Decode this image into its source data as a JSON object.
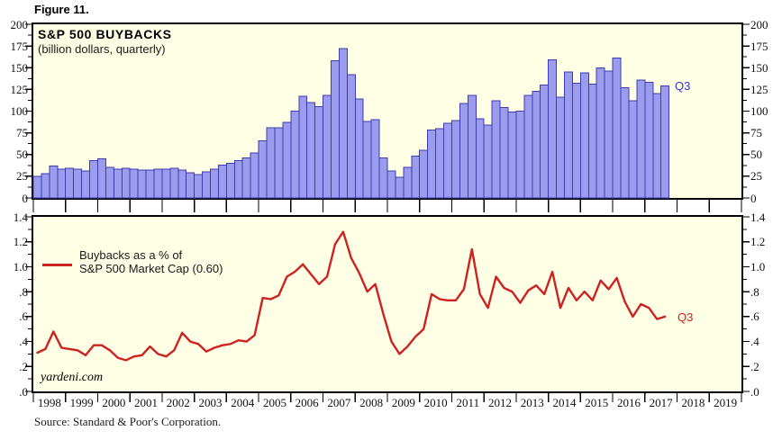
{
  "figure_label": "Figure 11.",
  "watermark": "yardeni.com",
  "source": "Source: Standard & Poor's Corporation.",
  "colors": {
    "plot_background": "#FFFFE5",
    "bar_fill": "#9C9CEF",
    "bar_border": "#3B3BAF",
    "line_red": "#CC2222",
    "annotation_blue": "#3333CC",
    "annotation_red": "#CC2222",
    "axis_black": "#000000"
  },
  "x_years": [
    "1998",
    "1999",
    "2000",
    "2001",
    "2002",
    "2003",
    "2004",
    "2005",
    "2006",
    "2007",
    "2008",
    "2009",
    "2010",
    "2011",
    "2012",
    "2013",
    "2014",
    "2015",
    "2016",
    "2017",
    "2018",
    "2019"
  ],
  "chart_data": [
    {
      "type": "bar",
      "panel": "top",
      "title": "S&P 500 BUYBACKS",
      "subtitle": "(billion dollars, quarterly)",
      "ylabel": "billion dollars",
      "ylim": [
        0,
        200
      ],
      "ytick_step": 25,
      "yticks": [
        [
          0,
          "0"
        ],
        [
          25,
          "25"
        ],
        [
          50,
          "50"
        ],
        [
          75,
          "75"
        ],
        [
          100,
          "100"
        ],
        [
          125,
          "125"
        ],
        [
          150,
          "150"
        ],
        [
          175,
          "175"
        ],
        [
          200,
          "200"
        ]
      ],
      "grid": false,
      "annotation": {
        "text": "Q3",
        "color": "#3333CC"
      },
      "categories": [
        "1998Q1",
        "1998Q2",
        "1998Q3",
        "1998Q4",
        "1999Q1",
        "1999Q2",
        "1999Q3",
        "1999Q4",
        "2000Q1",
        "2000Q2",
        "2000Q3",
        "2000Q4",
        "2001Q1",
        "2001Q2",
        "2001Q3",
        "2001Q4",
        "2002Q1",
        "2002Q2",
        "2002Q3",
        "2002Q4",
        "2003Q1",
        "2003Q2",
        "2003Q3",
        "2003Q4",
        "2004Q1",
        "2004Q2",
        "2004Q3",
        "2004Q4",
        "2005Q1",
        "2005Q2",
        "2005Q3",
        "2005Q4",
        "2006Q1",
        "2006Q2",
        "2006Q3",
        "2006Q4",
        "2007Q1",
        "2007Q2",
        "2007Q3",
        "2007Q4",
        "2008Q1",
        "2008Q2",
        "2008Q3",
        "2008Q4",
        "2009Q1",
        "2009Q2",
        "2009Q3",
        "2009Q4",
        "2010Q1",
        "2010Q2",
        "2010Q3",
        "2010Q4",
        "2011Q1",
        "2011Q2",
        "2011Q3",
        "2011Q4",
        "2012Q1",
        "2012Q2",
        "2012Q3",
        "2012Q4",
        "2013Q1",
        "2013Q2",
        "2013Q3",
        "2013Q4",
        "2014Q1",
        "2014Q2",
        "2014Q3",
        "2014Q4",
        "2015Q1",
        "2015Q2",
        "2015Q3",
        "2015Q4",
        "2016Q1",
        "2016Q2",
        "2016Q3",
        "2016Q4",
        "2017Q1",
        "2017Q2",
        "2017Q3"
      ],
      "values": [
        25,
        28,
        37,
        33,
        34,
        33,
        31,
        43,
        45,
        35,
        33,
        34,
        33,
        32,
        32,
        33,
        33,
        34,
        32,
        29,
        27,
        30,
        33,
        38,
        40,
        43,
        46,
        52,
        66,
        81,
        81,
        87,
        100,
        117,
        110,
        105,
        118,
        158,
        172,
        142,
        114,
        88,
        90,
        46,
        31,
        24,
        35,
        48,
        55,
        78,
        80,
        86,
        89,
        109,
        118,
        91,
        84,
        112,
        104,
        99,
        100,
        118,
        123,
        130,
        159,
        116,
        145,
        132,
        144,
        131,
        150,
        146,
        161,
        127,
        112,
        136,
        133,
        120,
        129
      ]
    },
    {
      "type": "line",
      "panel": "bottom",
      "legend_line1": "Buybacks as a % of",
      "legend_line2": "S&P 500 Market Cap (0.60)",
      "latest_value": 0.6,
      "ylim": [
        0,
        1.4
      ],
      "ytick_step": 0.2,
      "yticks": [
        [
          0,
          ".0"
        ],
        [
          0.2,
          ".2"
        ],
        [
          0.4,
          ".4"
        ],
        [
          0.6,
          ".6"
        ],
        [
          0.8,
          ".8"
        ],
        [
          1.0,
          "1.0"
        ],
        [
          1.2,
          "1.2"
        ],
        [
          1.4,
          "1.4"
        ]
      ],
      "grid": false,
      "annotation": {
        "text": "Q3",
        "color": "#CC2222"
      },
      "categories": [
        "1998Q1",
        "1998Q2",
        "1998Q3",
        "1998Q4",
        "1999Q1",
        "1999Q2",
        "1999Q3",
        "1999Q4",
        "2000Q1",
        "2000Q2",
        "2000Q3",
        "2000Q4",
        "2001Q1",
        "2001Q2",
        "2001Q3",
        "2001Q4",
        "2002Q1",
        "2002Q2",
        "2002Q3",
        "2002Q4",
        "2003Q1",
        "2003Q2",
        "2003Q3",
        "2003Q4",
        "2004Q1",
        "2004Q2",
        "2004Q3",
        "2004Q4",
        "2005Q1",
        "2005Q2",
        "2005Q3",
        "2005Q4",
        "2006Q1",
        "2006Q2",
        "2006Q3",
        "2006Q4",
        "2007Q1",
        "2007Q2",
        "2007Q3",
        "2007Q4",
        "2008Q1",
        "2008Q2",
        "2008Q3",
        "2008Q4",
        "2009Q1",
        "2009Q2",
        "2009Q3",
        "2009Q4",
        "2010Q1",
        "2010Q2",
        "2010Q3",
        "2010Q4",
        "2011Q1",
        "2011Q2",
        "2011Q3",
        "2011Q4",
        "2012Q1",
        "2012Q2",
        "2012Q3",
        "2012Q4",
        "2013Q1",
        "2013Q2",
        "2013Q3",
        "2013Q4",
        "2014Q1",
        "2014Q2",
        "2014Q3",
        "2014Q4",
        "2015Q1",
        "2015Q2",
        "2015Q3",
        "2015Q4",
        "2016Q1",
        "2016Q2",
        "2016Q3",
        "2016Q4",
        "2017Q1",
        "2017Q2",
        "2017Q3"
      ],
      "values": [
        0.31,
        0.34,
        0.48,
        0.35,
        0.34,
        0.33,
        0.29,
        0.37,
        0.37,
        0.33,
        0.27,
        0.25,
        0.28,
        0.29,
        0.36,
        0.3,
        0.28,
        0.33,
        0.47,
        0.4,
        0.38,
        0.32,
        0.35,
        0.37,
        0.38,
        0.41,
        0.4,
        0.45,
        0.75,
        0.74,
        0.77,
        0.92,
        0.96,
        1.02,
        0.94,
        0.86,
        0.92,
        1.18,
        1.28,
        1.07,
        0.95,
        0.8,
        0.86,
        0.62,
        0.4,
        0.3,
        0.36,
        0.44,
        0.5,
        0.78,
        0.74,
        0.73,
        0.73,
        0.82,
        1.14,
        0.78,
        0.67,
        0.92,
        0.83,
        0.8,
        0.71,
        0.81,
        0.85,
        0.78,
        0.96,
        0.67,
        0.83,
        0.73,
        0.8,
        0.73,
        0.89,
        0.82,
        0.91,
        0.72,
        0.6,
        0.7,
        0.67,
        0.58,
        0.6
      ]
    }
  ]
}
